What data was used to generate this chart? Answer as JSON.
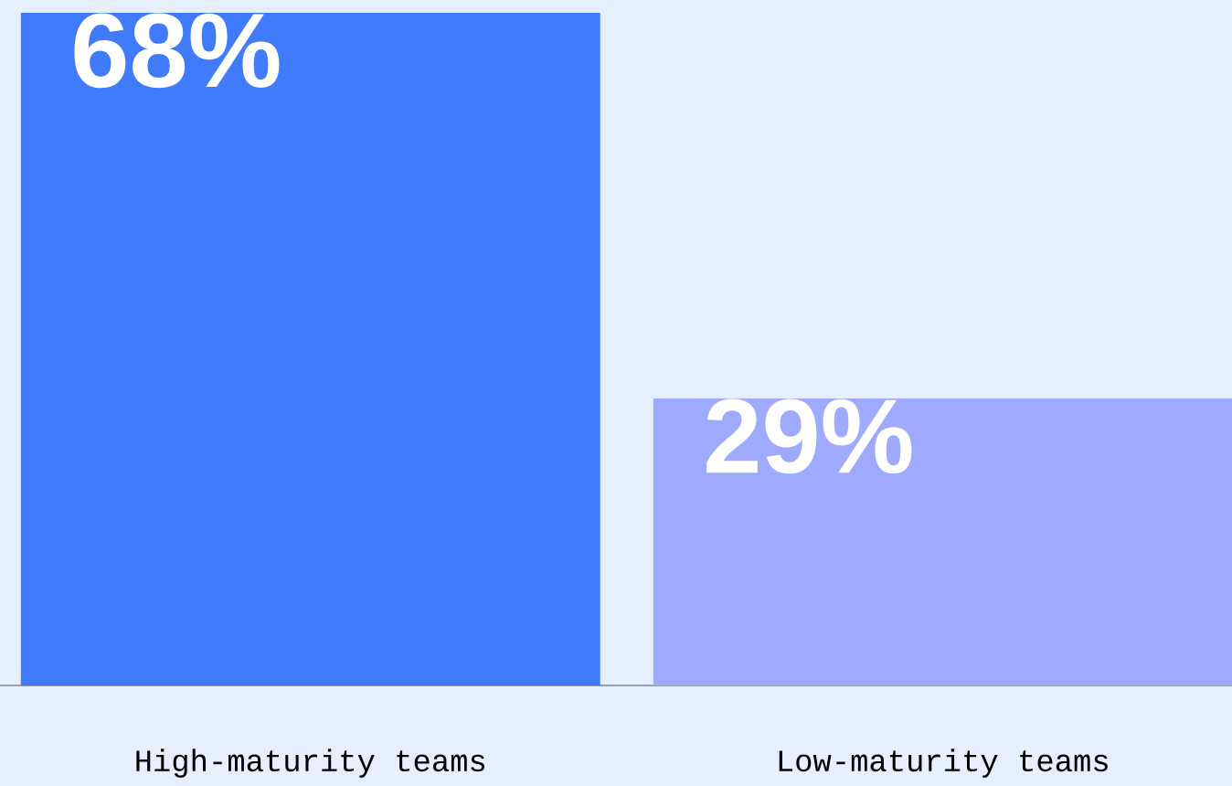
{
  "chart_data": {
    "type": "bar",
    "categories": [
      "High-maturity teams",
      "Low-maturity teams"
    ],
    "values": [
      68,
      29
    ],
    "colors": [
      "#3f7bfb",
      "#9eaafd"
    ],
    "value_labels": [
      "68%",
      "29%"
    ]
  }
}
